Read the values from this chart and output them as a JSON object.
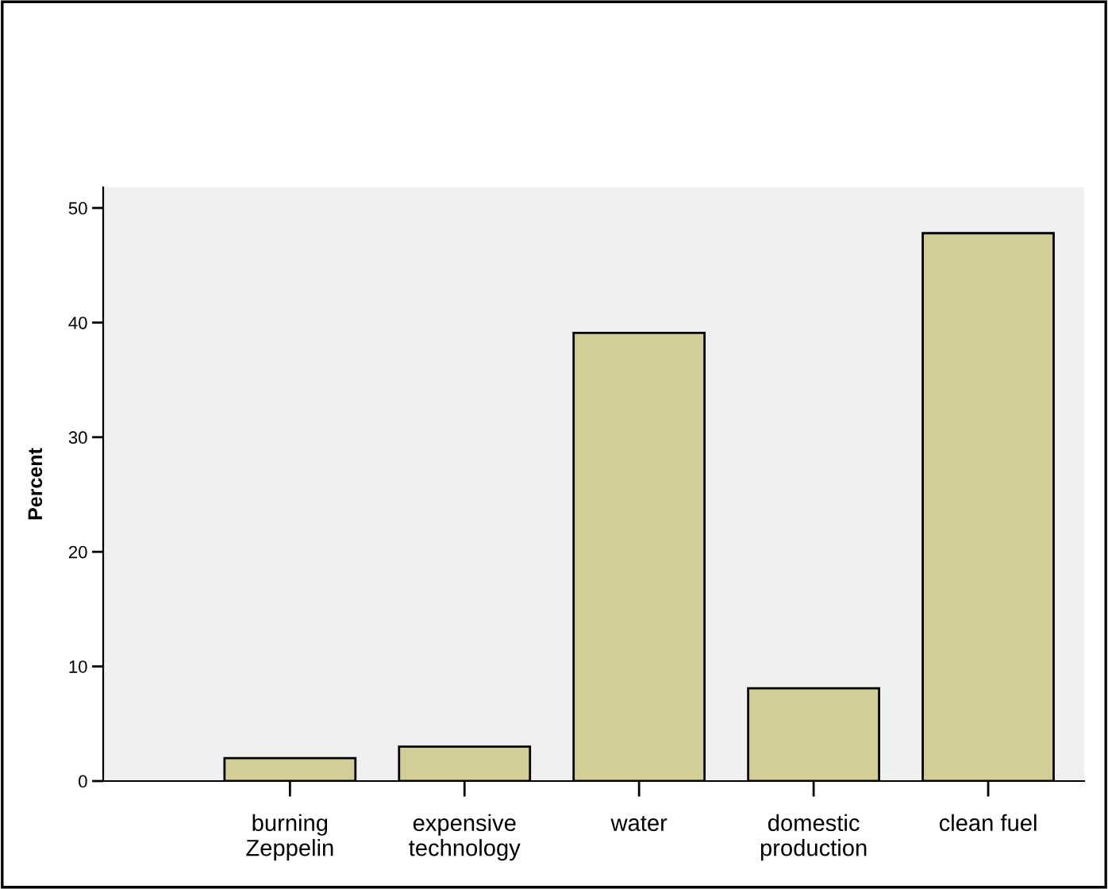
{
  "chart_data": {
    "type": "bar",
    "ylabel": "Percent",
    "categories": [
      "burning\nZeppelin",
      "expensive\ntechnology",
      "water",
      "domestic\nproduction",
      "clean fuel"
    ],
    "values": [
      2.0,
      3.0,
      39.1,
      8.1,
      47.8
    ],
    "color": "#d3ce97",
    "ylim": [
      0,
      51.8
    ],
    "yticks": [
      0,
      10,
      20,
      30,
      40,
      50
    ],
    "grid": false
  }
}
